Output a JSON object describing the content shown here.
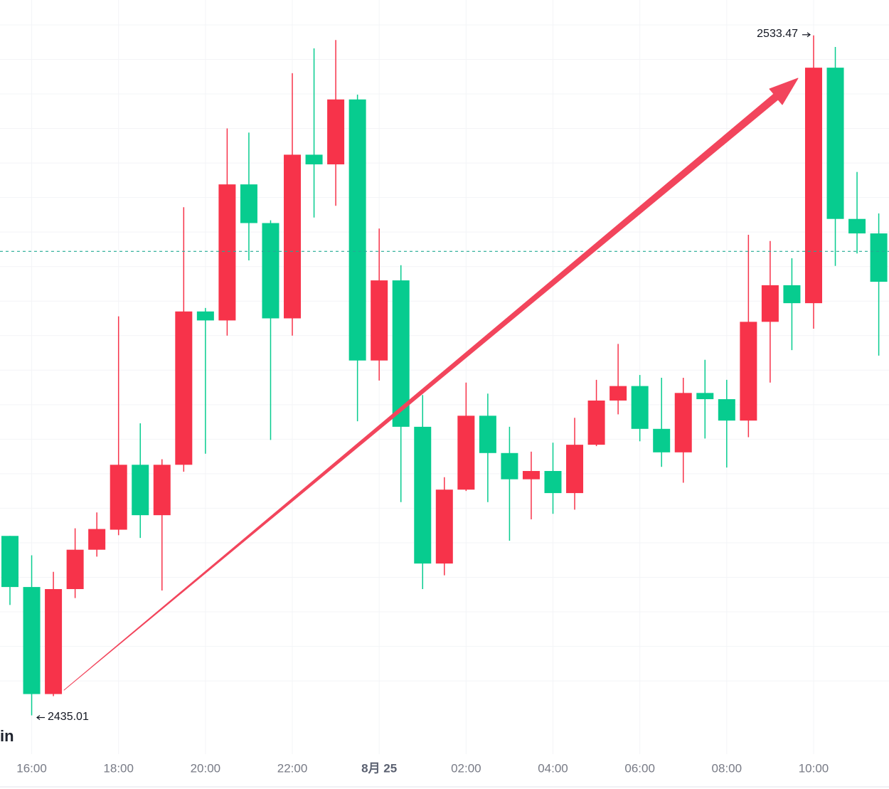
{
  "chart_data": {
    "type": "candlestick",
    "categories": [
      null,
      "16:00",
      null,
      null,
      null,
      "18:00",
      null,
      null,
      null,
      "20:00",
      null,
      null,
      null,
      "22:00",
      null,
      null,
      null,
      "8月 25",
      null,
      null,
      null,
      "02:00",
      null,
      null,
      null,
      "04:00",
      null,
      null,
      null,
      "06:00",
      null,
      null,
      null,
      "08:00",
      null,
      null,
      null,
      "10:00",
      null,
      null,
      null
    ],
    "open": [
      2461.0,
      2453.6,
      2438.1,
      2453.3,
      2459.0,
      2461.9,
      2471.3,
      2464.0,
      2471.3,
      2493.5,
      2492.2,
      2511.9,
      2506.3,
      2492.5,
      2516.2,
      2514.8,
      2524.2,
      2486.4,
      2498.0,
      2476.8,
      2457.0,
      2467.7,
      2478.4,
      2473.0,
      2469.2,
      2470.4,
      2467.2,
      2474.2,
      2480.6,
      2482.7,
      2476.5,
      2473.1,
      2481.7,
      2480.8,
      2477.7,
      2492.0,
      2497.3,
      2494.7,
      2528.8,
      2506.9,
      2504.8
    ],
    "high": [
      2461.0,
      2458.2,
      2455.8,
      2462.1,
      2464.4,
      2492.8,
      2477.3,
      2472.1,
      2508.6,
      2494.0,
      2520.0,
      2519.4,
      2506.7,
      2528.0,
      2531.6,
      2532.8,
      2524.9,
      2505.5,
      2500.2,
      2481.4,
      2469.5,
      2483.2,
      2481.6,
      2476.8,
      2473.2,
      2474.5,
      2478.1,
      2483.6,
      2488.8,
      2484.3,
      2483.9,
      2483.9,
      2486.5,
      2483.6,
      2504.6,
      2503.7,
      2501.2,
      2533.47,
      2531.8,
      2513.7,
      2507.7
    ],
    "low": [
      2451.0,
      2435.01,
      2437.8,
      2452.0,
      2458.0,
      2461.1,
      2460.7,
      2453.1,
      2470.3,
      2472.9,
      2490.0,
      2500.9,
      2474.9,
      2490.0,
      2507.1,
      2508.8,
      2477.6,
      2483.5,
      2465.9,
      2453.3,
      2455.3,
      2467.5,
      2465.9,
      2460.3,
      2463.4,
      2464.2,
      2464.8,
      2474.0,
      2478.6,
      2474.7,
      2471.0,
      2468.7,
      2475.1,
      2470.9,
      2475.3,
      2483.2,
      2487.9,
      2491.0,
      2500.1,
      2501.9,
      2487.1
    ],
    "close": [
      2453.6,
      2438.1,
      2453.3,
      2459.0,
      2462.0,
      2471.3,
      2464.0,
      2471.3,
      2493.5,
      2492.2,
      2511.9,
      2506.3,
      2492.5,
      2516.2,
      2514.8,
      2524.2,
      2486.4,
      2498.0,
      2476.8,
      2457.0,
      2467.7,
      2478.4,
      2473.0,
      2469.2,
      2470.4,
      2467.2,
      2474.2,
      2480.6,
      2482.7,
      2476.5,
      2473.1,
      2481.7,
      2480.8,
      2477.7,
      2492.0,
      2497.3,
      2494.7,
      2528.8,
      2506.9,
      2504.8,
      2497.8
    ],
    "up_color": "#f7334a",
    "down_color": "#07cc8f",
    "ylim": [
      2429.4,
      2538.6
    ],
    "ygrid": [
      2440,
      2445,
      2450,
      2455,
      2460,
      2465,
      2470,
      2475,
      2480,
      2485,
      2490,
      2495,
      2500,
      2505,
      2510,
      2515,
      2520,
      2525,
      2530,
      2535
    ],
    "price_line": 2502.2,
    "max_label": "2533.47",
    "min_label": "2435.01",
    "watermark": "in"
  }
}
